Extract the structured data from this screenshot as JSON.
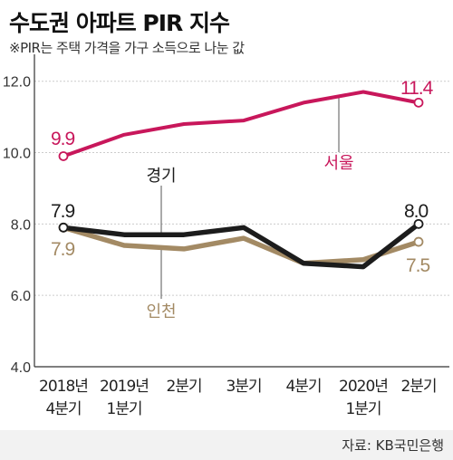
{
  "title": "수도권 아파트 PIR 지수",
  "subtitle": "※PIR는 주택 가격을 가구 소득으로 나눈 값",
  "source": "자료: KB국민은행",
  "colors": {
    "seoul": "#c8175b",
    "gyeonggi": "#1c1c1c",
    "incheon": "#a38a64",
    "grid": "#cccccc",
    "axis": "#333333"
  },
  "chart_data": {
    "type": "line",
    "categories": [
      [
        "2018년",
        "4분기"
      ],
      [
        "2019년",
        "1분기"
      ],
      [
        "2분기"
      ],
      [
        "3분기"
      ],
      [
        "4분기"
      ],
      [
        "2020년",
        "1분기"
      ],
      [
        "2분기"
      ]
    ],
    "yticks": [
      "4.0",
      "6.0",
      "8.0",
      "10.0",
      "12.0"
    ],
    "ylim": [
      4,
      12.5
    ],
    "grid": true,
    "series": [
      {
        "key": "seoul",
        "name": "서울",
        "values": [
          9.9,
          10.5,
          10.8,
          10.9,
          11.4,
          11.7,
          11.4
        ],
        "start_label": "9.9",
        "end_label": "11.4"
      },
      {
        "key": "gyeonggi",
        "name": "경기",
        "values": [
          7.9,
          7.7,
          7.7,
          7.9,
          6.9,
          6.8,
          8.0
        ],
        "start_label": "7.9",
        "end_label": "8.0"
      },
      {
        "key": "incheon",
        "name": "인천",
        "values": [
          7.9,
          7.4,
          7.3,
          7.6,
          6.9,
          7.0,
          7.5
        ],
        "start_label": "7.9",
        "end_label": "7.5"
      }
    ]
  }
}
